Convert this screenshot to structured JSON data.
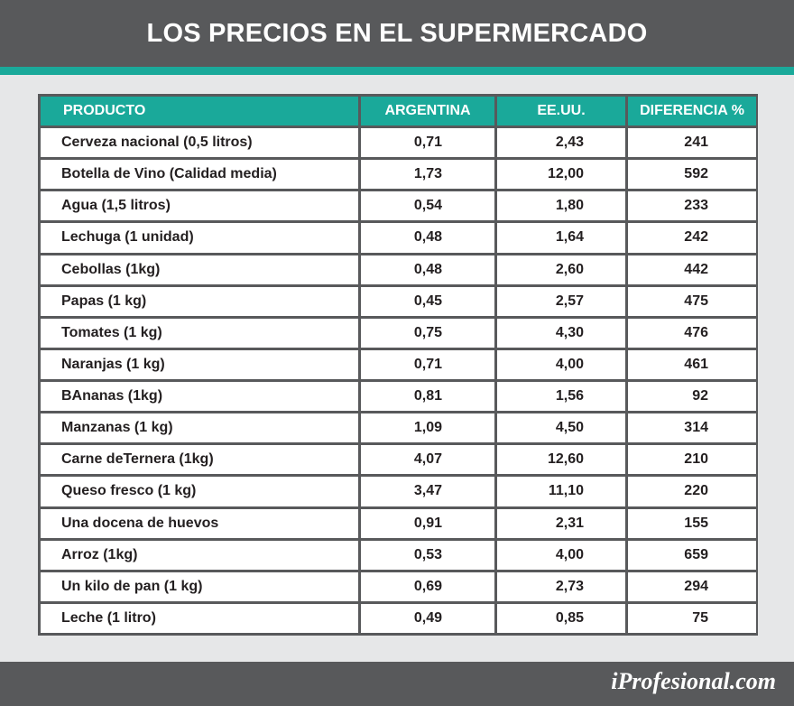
{
  "title": "LOS PRECIOS EN EL SUPERMERCADO",
  "logo": "iProfesional.com",
  "colors": {
    "header_bg": "#58595b",
    "accent": "#1aa99a",
    "page_bg": "#e6e7e8",
    "cell_bg": "#ffffff"
  },
  "chart_data": {
    "type": "table",
    "columns": [
      "PRODUCTO",
      "ARGENTINA",
      "EE.UU.",
      "DIFERENCIA %"
    ],
    "rows": [
      [
        "Cerveza nacional (0,5 litros)",
        "0,71",
        "2,43",
        "241"
      ],
      [
        "Botella de Vino (Calidad media)",
        "1,73",
        "12,00",
        "592"
      ],
      [
        "Agua (1,5 litros)",
        "0,54",
        "1,80",
        "233"
      ],
      [
        "Lechuga (1 unidad)",
        "0,48",
        "1,64",
        "242"
      ],
      [
        "Cebollas (1kg)",
        "0,48",
        "2,60",
        "442"
      ],
      [
        "Papas (1 kg)",
        "0,45",
        "2,57",
        "475"
      ],
      [
        "Tomates (1 kg)",
        "0,75",
        "4,30",
        "476"
      ],
      [
        "Naranjas (1 kg)",
        "0,71",
        "4,00",
        "461"
      ],
      [
        "BAnanas (1kg)",
        "0,81",
        "1,56",
        "92"
      ],
      [
        "Manzanas (1 kg)",
        "1,09",
        "4,50",
        "314"
      ],
      [
        "Carne deTernera (1kg)",
        "4,07",
        "12,60",
        "210"
      ],
      [
        "Queso fresco (1 kg)",
        "3,47",
        "11,10",
        "220"
      ],
      [
        "Una docena de huevos",
        "0,91",
        "2,31",
        "155"
      ],
      [
        "Arroz (1kg)",
        "0,53",
        "4,00",
        "659"
      ],
      [
        "Un kilo de pan (1 kg)",
        "0,69",
        "2,73",
        "294"
      ],
      [
        "Leche (1 litro)",
        "0,49",
        "0,85",
        "75"
      ]
    ]
  }
}
